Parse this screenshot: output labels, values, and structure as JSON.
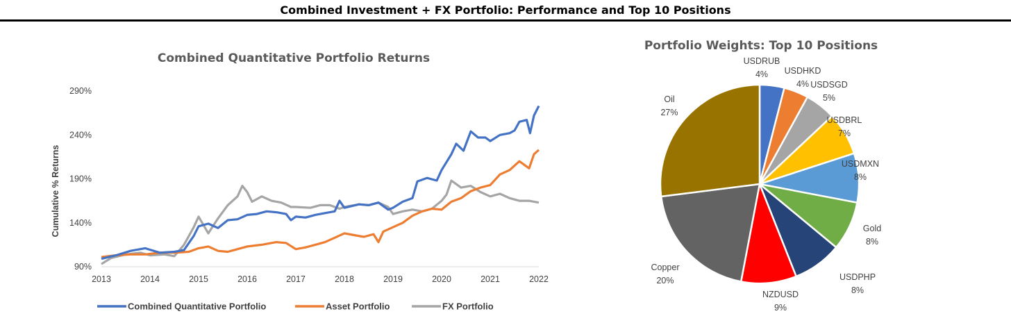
{
  "page_title": "Combined Investment + FX Portfolio: Performance and Top 10 Positions",
  "chart_data": [
    {
      "type": "line",
      "title": "Combined Quantitative Portfolio Returns",
      "ylabel": "Cumulative % Returns",
      "xlabel": "",
      "xlim": [
        2013,
        2022
      ],
      "ylim": [
        90,
        290
      ],
      "x_ticks": [
        "2013",
        "2014",
        "2015",
        "2016",
        "2017",
        "2018",
        "2019",
        "2020",
        "2021",
        "2022"
      ],
      "y_ticks": [
        "90%",
        "140%",
        "190%",
        "240%",
        "290%"
      ],
      "legend_position": "bottom",
      "series": [
        {
          "name": "Combined Quantitative Portfolio",
          "color": "#4472C4",
          "points": [
            [
              2013.0,
              99
            ],
            [
              2013.3,
              103
            ],
            [
              2013.6,
              108
            ],
            [
              2013.9,
              111
            ],
            [
              2014.2,
              106
            ],
            [
              2014.5,
              107
            ],
            [
              2014.7,
              109
            ],
            [
              2014.9,
              125
            ],
            [
              2015.0,
              136
            ],
            [
              2015.2,
              139
            ],
            [
              2015.4,
              134
            ],
            [
              2015.6,
              143
            ],
            [
              2015.8,
              144
            ],
            [
              2016.0,
              149
            ],
            [
              2016.2,
              150
            ],
            [
              2016.4,
              153
            ],
            [
              2016.6,
              152
            ],
            [
              2016.8,
              150
            ],
            [
              2016.9,
              143
            ],
            [
              2017.0,
              147
            ],
            [
              2017.2,
              146
            ],
            [
              2017.4,
              149
            ],
            [
              2017.6,
              151
            ],
            [
              2017.8,
              153
            ],
            [
              2017.9,
              165
            ],
            [
              2018.0,
              157
            ],
            [
              2018.3,
              161
            ],
            [
              2018.5,
              160
            ],
            [
              2018.7,
              163
            ],
            [
              2018.9,
              155
            ],
            [
              2019.0,
              157
            ],
            [
              2019.2,
              164
            ],
            [
              2019.4,
              168
            ],
            [
              2019.5,
              187
            ],
            [
              2019.7,
              191
            ],
            [
              2019.9,
              188
            ],
            [
              2020.0,
              200
            ],
            [
              2020.2,
              218
            ],
            [
              2020.3,
              230
            ],
            [
              2020.45,
              222
            ],
            [
              2020.6,
              244
            ],
            [
              2020.75,
              237
            ],
            [
              2020.9,
              237
            ],
            [
              2021.0,
              233
            ],
            [
              2021.2,
              240
            ],
            [
              2021.4,
              242
            ],
            [
              2021.5,
              245
            ],
            [
              2021.6,
              255
            ],
            [
              2021.75,
              257
            ],
            [
              2021.82,
              242
            ],
            [
              2021.9,
              262
            ],
            [
              2022.0,
              273
            ]
          ]
        },
        {
          "name": "Asset Portfolio",
          "color": "#ED7D31",
          "points": [
            [
              2013.0,
              101
            ],
            [
              2013.3,
              103
            ],
            [
              2013.6,
              104
            ],
            [
              2013.9,
              104
            ],
            [
              2014.2,
              106
            ],
            [
              2014.5,
              106
            ],
            [
              2014.8,
              107
            ],
            [
              2015.0,
              111
            ],
            [
              2015.2,
              113
            ],
            [
              2015.4,
              108
            ],
            [
              2015.6,
              107
            ],
            [
              2015.8,
              110
            ],
            [
              2016.0,
              113
            ],
            [
              2016.3,
              115
            ],
            [
              2016.6,
              118
            ],
            [
              2016.8,
              117
            ],
            [
              2017.0,
              110
            ],
            [
              2017.2,
              112
            ],
            [
              2017.4,
              115
            ],
            [
              2017.6,
              118
            ],
            [
              2017.8,
              123
            ],
            [
              2018.0,
              128
            ],
            [
              2018.2,
              126
            ],
            [
              2018.4,
              124
            ],
            [
              2018.6,
              127
            ],
            [
              2018.7,
              118
            ],
            [
              2018.8,
              130
            ],
            [
              2019.0,
              135
            ],
            [
              2019.2,
              140
            ],
            [
              2019.4,
              148
            ],
            [
              2019.6,
              153
            ],
            [
              2019.8,
              156
            ],
            [
              2020.0,
              155
            ],
            [
              2020.2,
              164
            ],
            [
              2020.4,
              168
            ],
            [
              2020.6,
              176
            ],
            [
              2020.8,
              180
            ],
            [
              2021.0,
              183
            ],
            [
              2021.2,
              195
            ],
            [
              2021.4,
              200
            ],
            [
              2021.6,
              210
            ],
            [
              2021.8,
              202
            ],
            [
              2021.9,
              218
            ],
            [
              2022.0,
              223
            ]
          ]
        },
        {
          "name": "FX Portfolio",
          "color": "#A5A5A5",
          "points": [
            [
              2013.0,
              93
            ],
            [
              2013.2,
              100
            ],
            [
              2013.5,
              104
            ],
            [
              2013.8,
              106
            ],
            [
              2014.0,
              103
            ],
            [
              2014.3,
              104
            ],
            [
              2014.5,
              102
            ],
            [
              2014.7,
              115
            ],
            [
              2014.9,
              135
            ],
            [
              2015.0,
              147
            ],
            [
              2015.2,
              128
            ],
            [
              2015.4,
              145
            ],
            [
              2015.6,
              160
            ],
            [
              2015.8,
              170
            ],
            [
              2015.9,
              182
            ],
            [
              2016.0,
              175
            ],
            [
              2016.1,
              164
            ],
            [
              2016.3,
              170
            ],
            [
              2016.5,
              165
            ],
            [
              2016.7,
              163
            ],
            [
              2016.9,
              158
            ],
            [
              2017.0,
              158
            ],
            [
              2017.3,
              157
            ],
            [
              2017.5,
              160
            ],
            [
              2017.7,
              160
            ],
            [
              2017.9,
              156
            ],
            [
              2018.0,
              158
            ],
            [
              2018.3,
              161
            ],
            [
              2018.5,
              160
            ],
            [
              2018.7,
              163
            ],
            [
              2018.9,
              158
            ],
            [
              2019.0,
              150
            ],
            [
              2019.2,
              153
            ],
            [
              2019.4,
              155
            ],
            [
              2019.6,
              153
            ],
            [
              2019.8,
              156
            ],
            [
              2020.0,
              165
            ],
            [
              2020.1,
              172
            ],
            [
              2020.2,
              188
            ],
            [
              2020.4,
              180
            ],
            [
              2020.6,
              182
            ],
            [
              2020.8,
              175
            ],
            [
              2021.0,
              170
            ],
            [
              2021.2,
              173
            ],
            [
              2021.4,
              168
            ],
            [
              2021.6,
              165
            ],
            [
              2021.8,
              165
            ],
            [
              2022.0,
              163
            ]
          ]
        }
      ]
    },
    {
      "type": "pie",
      "title": "Portfolio Weights: Top 10 Positions",
      "slices": [
        {
          "label": "USDRUB",
          "value": 4,
          "text": "4%",
          "color": "#4472C4"
        },
        {
          "label": "USDHKD",
          "value": 4,
          "text": "4%",
          "color": "#ED7D31"
        },
        {
          "label": "USDSGD",
          "value": 5,
          "text": "5%",
          "color": "#A5A5A5"
        },
        {
          "label": "USDBRL",
          "value": 7,
          "text": "7%",
          "color": "#FFC000"
        },
        {
          "label": "USDMXN",
          "value": 8,
          "text": "8%",
          "color": "#5B9BD5"
        },
        {
          "label": "Gold",
          "value": 8,
          "text": "8%",
          "color": "#70AD47"
        },
        {
          "label": "USDPHP",
          "value": 8,
          "text": "8%",
          "color": "#264478"
        },
        {
          "label": "NZDUSD",
          "value": 9,
          "text": "9%",
          "color": "#FF0000"
        },
        {
          "label": "Copper",
          "value": 20,
          "text": "20%",
          "color": "#636363"
        },
        {
          "label": "Oil",
          "value": 27,
          "text": "27%",
          "color": "#997300"
        }
      ]
    }
  ]
}
